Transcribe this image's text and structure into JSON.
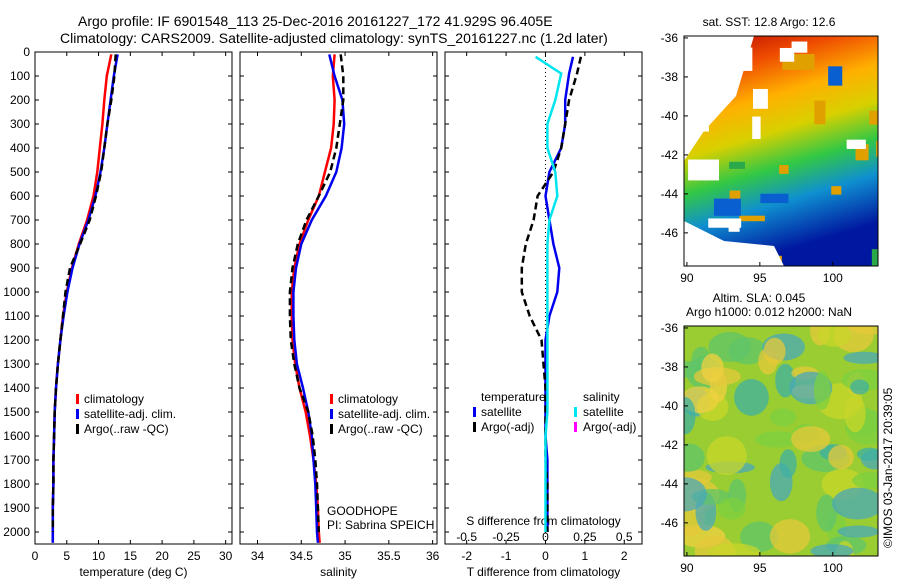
{
  "header": {
    "title_line1": "Argo profile: IF 6901548_113 25-Dec-2016 20161227_172 41.929S 96.405E",
    "title_line2": "Climatology: CARS2009. Satellite-adjusted climatology: synTS_20161227.nc (1.2d later)"
  },
  "colors": {
    "climatology": "#ff0000",
    "satellite": "#0000ee",
    "argo": "#000000",
    "salinity_satellite": "#00e5ee",
    "salinity_argo": "#ff00ff"
  },
  "chart_data": [
    {
      "type": "line",
      "panel": "temperature",
      "xlabel": "temperature (deg C)",
      "xlim": [
        0,
        31
      ],
      "xticks": [
        0,
        5,
        10,
        15,
        20,
        25,
        30
      ],
      "ylim": [
        2050,
        0
      ],
      "yticks": [
        0,
        100,
        200,
        300,
        400,
        500,
        600,
        700,
        800,
        900,
        1000,
        1100,
        1200,
        1300,
        1400,
        1500,
        1600,
        1700,
        1800,
        1900,
        2000
      ],
      "legend": [
        "climatology",
        "satellite-adj. clim.",
        "Argo(..raw -QC)"
      ],
      "series": [
        {
          "name": "climatology",
          "x": [
            12.0,
            11.3,
            10.9,
            10.6,
            10.2,
            9.8,
            9.2,
            8.2,
            6.9,
            5.8,
            5.0,
            4.4,
            4.0,
            3.6,
            3.3,
            3.1,
            3.0,
            2.9,
            2.9,
            2.8,
            2.8,
            2.8
          ],
          "y": [
            10,
            100,
            200,
            300,
            400,
            500,
            600,
            700,
            800,
            900,
            1000,
            1100,
            1200,
            1300,
            1400,
            1500,
            1600,
            1700,
            1800,
            1900,
            2000,
            2045
          ]
        },
        {
          "name": "satellite-adj. clim.",
          "x": [
            13.0,
            12.4,
            11.9,
            11.4,
            10.9,
            10.3,
            9.5,
            8.4,
            7.0,
            5.9,
            5.1,
            4.5,
            4.0,
            3.6,
            3.3,
            3.1,
            3.0,
            2.9,
            2.9,
            2.8,
            2.8,
            2.8
          ],
          "y": [
            10,
            100,
            200,
            300,
            400,
            500,
            600,
            700,
            800,
            900,
            1000,
            1100,
            1200,
            1300,
            1400,
            1500,
            1600,
            1700,
            1800,
            1900,
            2000,
            2045
          ]
        },
        {
          "name": "Argo(..raw -QC)",
          "x": [
            12.7,
            12.5,
            12.0,
            11.4,
            10.9,
            10.4,
            9.6,
            8.6,
            7.1,
            5.5,
            4.8,
            4.4,
            4.0,
            3.6,
            3.3,
            3.1,
            3.0,
            2.9,
            2.9,
            2.8,
            2.8
          ],
          "y": [
            10,
            100,
            200,
            300,
            400,
            500,
            600,
            700,
            800,
            900,
            1000,
            1100,
            1200,
            1300,
            1400,
            1500,
            1600,
            1700,
            1800,
            1900,
            2000
          ]
        }
      ]
    },
    {
      "type": "line",
      "panel": "salinity",
      "xlabel": "salinity",
      "xlim": [
        33.8,
        36.05
      ],
      "xticks": [
        34,
        34.5,
        35,
        35.5,
        36
      ],
      "xticklabels": [
        "34",
        "34.5",
        "35",
        "35.5",
        "36"
      ],
      "ylim": [
        2050,
        0
      ],
      "legend": [
        "climatology",
        "satellite-adj. clim.",
        "Argo(..raw -QC)"
      ],
      "annotation": [
        "GOODHOPE",
        "PI: Sabrina SPEICH"
      ],
      "series": [
        {
          "name": "climatology",
          "x": [
            34.88,
            34.86,
            34.88,
            34.87,
            34.84,
            34.77,
            34.7,
            34.58,
            34.48,
            34.42,
            34.39,
            34.39,
            34.4,
            34.43,
            34.48,
            34.55,
            34.6,
            34.64,
            34.67,
            34.69,
            34.7,
            34.71
          ],
          "y": [
            10,
            100,
            200,
            300,
            400,
            500,
            600,
            700,
            800,
            900,
            1000,
            1100,
            1200,
            1300,
            1400,
            1500,
            1600,
            1700,
            1800,
            1900,
            2000,
            2045
          ]
        },
        {
          "name": "satellite-adj. clim.",
          "x": [
            34.82,
            34.88,
            34.97,
            34.99,
            34.96,
            34.9,
            34.78,
            34.62,
            34.5,
            34.44,
            34.41,
            34.41,
            34.42,
            34.45,
            34.52,
            34.58,
            34.62,
            34.64,
            34.66,
            34.67,
            34.68,
            34.69
          ],
          "y": [
            10,
            100,
            200,
            300,
            400,
            500,
            600,
            700,
            800,
            900,
            1000,
            1100,
            1200,
            1300,
            1400,
            1500,
            1600,
            1700,
            1800,
            1900,
            2000,
            2045
          ]
        },
        {
          "name": "Argo(..raw -QC)",
          "x": [
            34.95,
            34.98,
            34.98,
            34.94,
            34.9,
            34.83,
            34.7,
            34.56,
            34.46,
            34.4,
            34.37,
            34.37,
            34.38,
            34.42,
            34.48,
            34.58,
            34.63,
            34.66,
            34.68,
            34.69,
            34.7
          ],
          "y": [
            10,
            100,
            200,
            300,
            400,
            500,
            600,
            700,
            800,
            900,
            1000,
            1100,
            1200,
            1300,
            1400,
            1500,
            1600,
            1700,
            1800,
            1900,
            2000
          ]
        }
      ]
    },
    {
      "type": "line",
      "panel": "difference",
      "xlabel": "T difference from climatology",
      "xlabel_top": "S difference from climatology",
      "xlim": [
        -2.55,
        2.45
      ],
      "xticks": [
        -2,
        -1,
        0,
        1,
        2
      ],
      "s_ticks": [
        "-0.5",
        "-0.25",
        "0",
        "0.25",
        "0.5"
      ],
      "legend_temperature_title": "temperature",
      "legend_salinity_title": "salinity",
      "legend_temperature": [
        "satellite",
        "Argo(-adj)"
      ],
      "legend_salinity": [
        "satellite",
        "Argo(-adj)"
      ],
      "series": [
        {
          "name": "satellite",
          "group": "temperature",
          "x": [
            0.7,
            0.6,
            0.5,
            0.5,
            0.4,
            0.1,
            0.0,
            0.1,
            0.2,
            0.35,
            0.3,
            0.1,
            0.0,
            0.0,
            0.0,
            0.0,
            0.0,
            0.05,
            0.05,
            0.05,
            0.05
          ],
          "y": [
            20,
            90,
            200,
            300,
            400,
            500,
            600,
            700,
            800,
            900,
            1000,
            1100,
            1200,
            1300,
            1400,
            1500,
            1600,
            1700,
            1800,
            1900,
            2000
          ]
        },
        {
          "name": "Argo(-adj)",
          "group": "temperature",
          "x": [
            0.9,
            0.8,
            0.6,
            0.5,
            0.4,
            0.2,
            -0.2,
            -0.3,
            -0.5,
            -0.6,
            -0.6,
            -0.4,
            -0.1,
            -0.05,
            0.0,
            0.0,
            0.0,
            0.0,
            0.05,
            0.05,
            0.05
          ],
          "y": [
            20,
            90,
            200,
            300,
            400,
            500,
            600,
            700,
            800,
            900,
            1000,
            1100,
            1200,
            1300,
            1400,
            1500,
            1600,
            1700,
            1800,
            1900,
            2000
          ]
        },
        {
          "name": "satellite",
          "group": "salinity",
          "x": [
            -0.25,
            0.4,
            0.25,
            0.05,
            0.05,
            0.25,
            0.3,
            0.1,
            0.05,
            0.05,
            0.05,
            0.05,
            0.05,
            0.05,
            0.05,
            0.05,
            0.0,
            0.0,
            0.0,
            0.0,
            0.0
          ],
          "y": [
            20,
            90,
            200,
            300,
            400,
            500,
            600,
            700,
            800,
            900,
            1000,
            1100,
            1200,
            1300,
            1400,
            1500,
            1600,
            1700,
            1800,
            1900,
            2000
          ]
        },
        {
          "name": "Argo(-adj)",
          "group": "salinity",
          "x": [],
          "y": []
        }
      ]
    },
    {
      "type": "heatmap",
      "panel": "sst-map",
      "title": "sat. SST: 12.8 Argo: 12.6",
      "xticks": [
        90,
        95,
        100
      ],
      "yticks": [
        -36,
        -38,
        -40,
        -42,
        -44,
        -46
      ],
      "xlim": [
        89.8,
        103.1
      ],
      "ylim": [
        -47.7,
        -35.9
      ]
    },
    {
      "type": "heatmap",
      "panel": "sla-map",
      "title": "Altim. SLA: 0.045",
      "subtitle": "Argo h1000: 0.012 h2000: NaN",
      "xticks": [
        90,
        95,
        100
      ],
      "yticks": [
        -36,
        -38,
        -40,
        -42,
        -44,
        -46
      ],
      "xlim": [
        89.8,
        103.1
      ],
      "ylim": [
        -47.7,
        -35.9
      ]
    }
  ],
  "footer": {
    "credit": "©IMOS 03-Jan-2017 20:39:05"
  }
}
